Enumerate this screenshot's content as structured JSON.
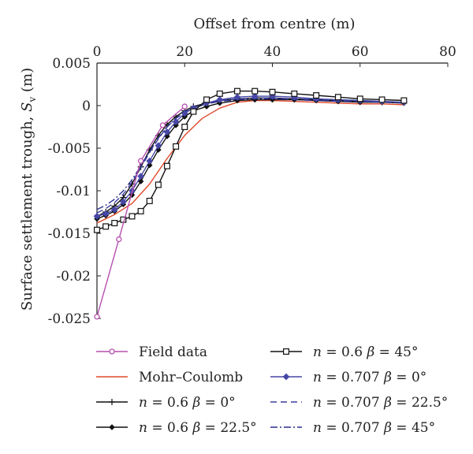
{
  "chart_data": {
    "type": "line",
    "xlabel": "Offset from centre (m)",
    "ylabel_main": "Surface settlement trough, ",
    "ylabel_symbol": "S",
    "ylabel_sub": "v",
    "ylabel_unit": " (m)",
    "xlim": [
      0,
      80
    ],
    "ylim": [
      -0.025,
      0.005
    ],
    "x_ticks": [
      0,
      20,
      40,
      60,
      80
    ],
    "x_tick_labels": [
      "0",
      "20",
      "40",
      "60",
      "80"
    ],
    "y_ticks": [
      0.005,
      0,
      -0.005,
      -0.01,
      -0.015,
      -0.02,
      -0.025
    ],
    "y_tick_labels": [
      "0.005",
      "0",
      "-0.005",
      "-0.01",
      "-0.015",
      "-0.02",
      "-0.025"
    ],
    "x_axis_position": "top",
    "grid": false,
    "legend_position": "bottom",
    "series": [
      {
        "name": "Field data",
        "color": "#b84fb0",
        "dash": "",
        "marker": "circle",
        "x": [
          0,
          5,
          10,
          15,
          20
        ],
        "y": [
          -0.0248,
          -0.0157,
          -0.0065,
          -0.0023,
          -0.0001
        ]
      },
      {
        "name": "Mohr–Coulomb",
        "color": "#e0482a",
        "dash": "",
        "marker": "none",
        "x": [
          0,
          4,
          8,
          12,
          16,
          20,
          24,
          28,
          32,
          36,
          40,
          45,
          50,
          55,
          60,
          65,
          70
        ],
        "y": [
          -0.0138,
          -0.0128,
          -0.0115,
          -0.0092,
          -0.0062,
          -0.0035,
          -0.0015,
          -0.0003,
          0.0004,
          0.0006,
          0.0006,
          0.0005,
          0.0004,
          0.0003,
          0.0002,
          0.0002,
          0.0001
        ]
      },
      {
        "name": "n = 0.6 β = 0°",
        "prefix_symbol": "n",
        "middle": " = 0.6 ",
        "suffix_symbol": "β",
        "value_text": " = 0°",
        "color": "#111111",
        "dash": "",
        "marker": "plus",
        "x": [
          0,
          2,
          4,
          6,
          8,
          10,
          12,
          14,
          16,
          18,
          20,
          22,
          25,
          28,
          32,
          36,
          40,
          45,
          50,
          55,
          60,
          65,
          70
        ],
        "y": [
          -0.013,
          -0.0125,
          -0.0118,
          -0.0108,
          -0.0092,
          -0.0072,
          -0.0052,
          -0.0035,
          -0.0022,
          -0.0013,
          -0.0006,
          -0.0001,
          0.0003,
          0.0006,
          0.0008,
          0.0009,
          0.0009,
          0.0008,
          0.0007,
          0.0006,
          0.0005,
          0.0004,
          0.0004
        ]
      },
      {
        "name": "n = 0.6 β = 22.5°",
        "prefix_symbol": "n",
        "middle": " = 0.6 ",
        "suffix_symbol": "β",
        "value_text": " = 22.5°",
        "color": "#111111",
        "dash": "",
        "marker": "diamond",
        "x": [
          0,
          2,
          4,
          6,
          8,
          10,
          12,
          14,
          16,
          18,
          20,
          22,
          25,
          28,
          32,
          36,
          40,
          45,
          50,
          55,
          60,
          65,
          70
        ],
        "y": [
          -0.0133,
          -0.0129,
          -0.0124,
          -0.0116,
          -0.0105,
          -0.0089,
          -0.007,
          -0.0052,
          -0.0036,
          -0.0023,
          -0.0013,
          -0.0006,
          -0.0001,
          0.0003,
          0.0006,
          0.0007,
          0.0007,
          0.0007,
          0.0006,
          0.0005,
          0.0004,
          0.0004,
          0.0003
        ]
      },
      {
        "name": "n = 0.6 β = 45°",
        "prefix_symbol": "n",
        "middle": " = 0.6 ",
        "suffix_symbol": "β",
        "value_text": " = 45°",
        "color": "#111111",
        "dash": "",
        "marker": "square",
        "x": [
          0,
          2,
          4,
          6,
          8,
          10,
          12,
          14,
          16,
          18,
          20,
          22,
          25,
          28,
          32,
          36,
          40,
          45,
          50,
          55,
          60,
          65,
          70
        ],
        "y": [
          -0.0146,
          -0.0142,
          -0.0138,
          -0.0134,
          -0.013,
          -0.0124,
          -0.0112,
          -0.0093,
          -0.0071,
          -0.0048,
          -0.0025,
          -0.0007,
          0.0007,
          0.0014,
          0.0017,
          0.0017,
          0.0016,
          0.0014,
          0.0012,
          0.001,
          0.0008,
          0.0007,
          0.0006
        ]
      },
      {
        "name": "n = 0.707 β = 0°",
        "prefix_symbol": "n",
        "middle": " = 0.707 ",
        "suffix_symbol": "β",
        "value_text": " = 0°",
        "color": "#4747a8",
        "dash": "",
        "marker": "diamond-filled",
        "x": [
          0,
          2,
          4,
          6,
          8,
          10,
          12,
          14,
          16,
          18,
          20,
          22,
          25,
          28,
          32,
          36,
          40,
          45,
          50,
          55,
          60,
          65,
          70
        ],
        "y": [
          -0.013,
          -0.0127,
          -0.0122,
          -0.0113,
          -0.01,
          -0.0083,
          -0.0065,
          -0.0047,
          -0.0031,
          -0.0019,
          -0.0009,
          -0.0003,
          0.0003,
          0.0007,
          0.001,
          0.0011,
          0.0011,
          0.001,
          0.0008,
          0.0007,
          0.0006,
          0.0005,
          0.0004
        ]
      },
      {
        "name": "n = 0.707 β = 22.5°",
        "prefix_symbol": "n",
        "middle": " = 0.707 ",
        "suffix_symbol": "β",
        "value_text": " = 22.5°",
        "color": "#3b3f9c",
        "dash": "8,5",
        "marker": "none",
        "x": [
          0,
          2,
          4,
          6,
          8,
          10,
          12,
          14,
          16,
          18,
          20,
          22,
          25,
          28,
          32,
          36,
          40,
          45,
          50,
          55,
          60,
          65,
          70
        ],
        "y": [
          -0.0126,
          -0.0121,
          -0.0114,
          -0.0104,
          -0.009,
          -0.0073,
          -0.0055,
          -0.0039,
          -0.0025,
          -0.0015,
          -0.0007,
          -0.0002,
          0.0003,
          0.0006,
          0.0008,
          0.0009,
          0.0009,
          0.0008,
          0.0007,
          0.0006,
          0.0005,
          0.0004,
          0.0004
        ]
      },
      {
        "name": "n = 0.707 β = 45°",
        "prefix_symbol": "n",
        "middle": " = 0.707 ",
        "suffix_symbol": "β",
        "value_text": " = 45°",
        "color": "#2a2f8f",
        "dash": "9,3,2,3",
        "marker": "none",
        "x": [
          0,
          2,
          4,
          6,
          8,
          10,
          12,
          14,
          16,
          18,
          20,
          22,
          25,
          28,
          32,
          36,
          40,
          45,
          50,
          55,
          60,
          65,
          70
        ],
        "y": [
          -0.0122,
          -0.0117,
          -0.011,
          -0.01,
          -0.0087,
          -0.0071,
          -0.0054,
          -0.0038,
          -0.0025,
          -0.0015,
          -0.0008,
          -0.0003,
          0.0002,
          0.0005,
          0.0007,
          0.0008,
          0.0008,
          0.0007,
          0.0006,
          0.0005,
          0.0005,
          0.0004,
          0.0003
        ]
      }
    ]
  }
}
